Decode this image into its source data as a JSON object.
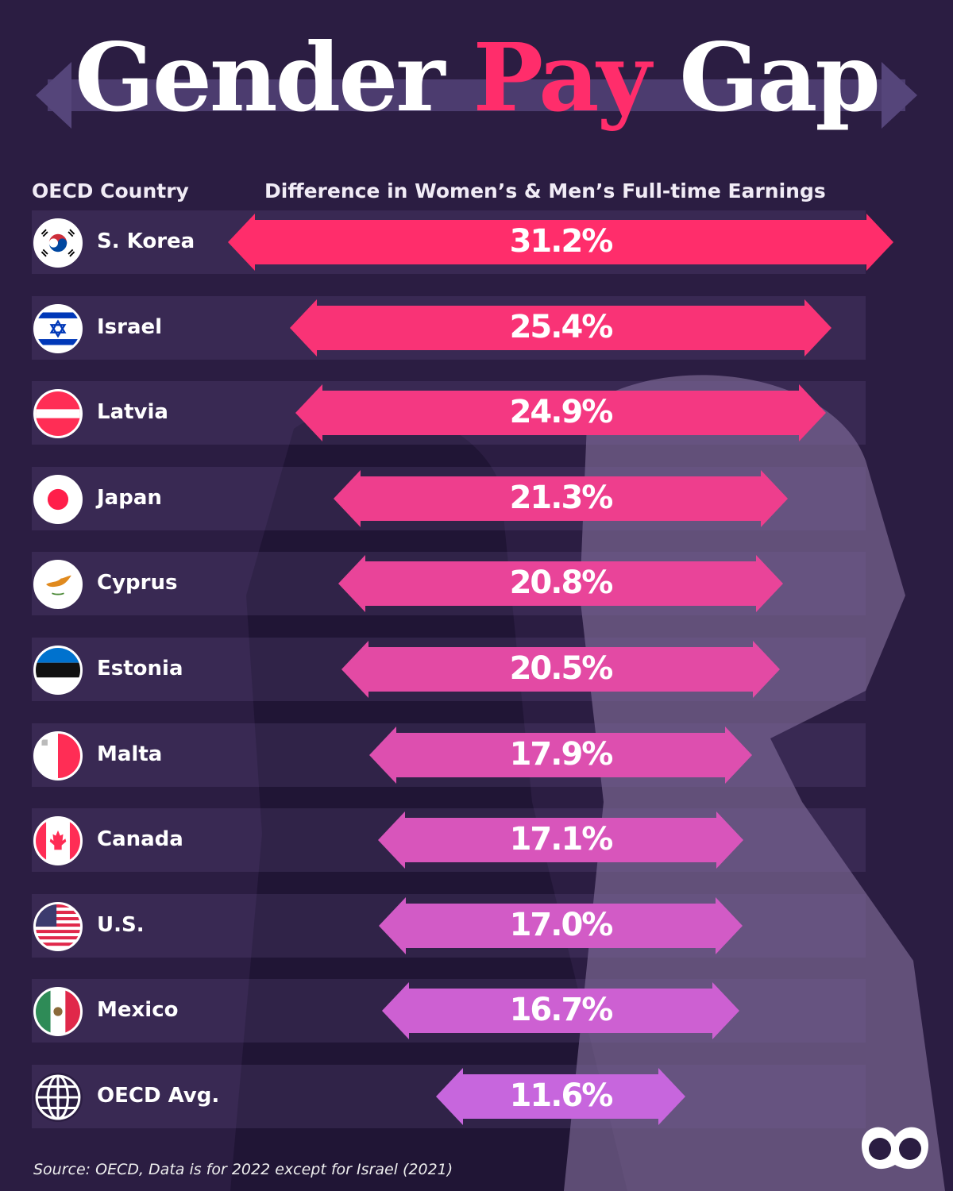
{
  "title": {
    "part1": "Gender ",
    "part2": "Pay",
    "part3": " Gap"
  },
  "headers": {
    "country": "OECD Country",
    "metric": "Difference in Women’s & Men’s Full-time Earnings"
  },
  "source": "Source: OECD, Data is for 2022 except for Israel (2021)",
  "chart_data": {
    "type": "bar",
    "orientation": "horizontal",
    "xlabel": "Difference in Women’s & Men’s Full-time Earnings",
    "ylabel": "OECD Country",
    "categories": [
      "S. Korea",
      "Israel",
      "Latvia",
      "Japan",
      "Cyprus",
      "Estonia",
      "Malta",
      "Canada",
      "U.S.",
      "Mexico",
      "OECD Avg."
    ],
    "values": [
      31.2,
      25.4,
      24.9,
      21.3,
      20.8,
      20.5,
      17.9,
      17.1,
      17.0,
      16.7,
      11.6
    ],
    "labels": [
      "31.2%",
      "25.4%",
      "24.9%",
      "21.3%",
      "20.8%",
      "20.5%",
      "17.9%",
      "17.1%",
      "17.0%",
      "16.7%",
      "11.6%"
    ],
    "unit": "%",
    "colors": {
      "start": "#ff2d6b",
      "end": "#c766dd",
      "accent": "#ff2d6b",
      "background": "#2b1d42"
    }
  }
}
